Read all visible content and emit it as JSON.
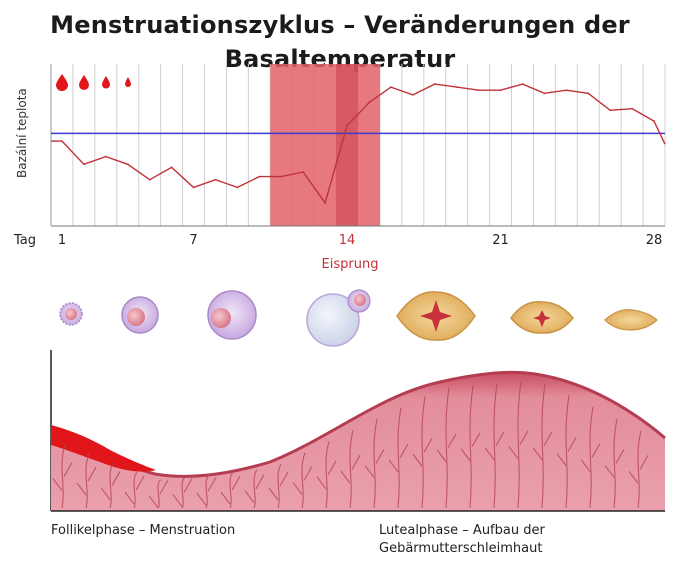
{
  "title_line1": "Menstruationszyklus – Veränderungen der",
  "title_line2": "Basaltemperatur",
  "y_axis_label": "Bazální teplota",
  "x_axis_prefix": "Tag",
  "x_ticks": [
    "1",
    "7",
    "14",
    "21",
    "28"
  ],
  "ovulation_label": "Eisprung",
  "bottom_left_label": "Follikelphase – Menstruation",
  "bottom_right_label_line1": "Lutealphase – Aufbau der",
  "bottom_right_label_line2": "Gebärmutterschleimhaut",
  "colors": {
    "temperature_line": "#c0323a",
    "baseline": "#3b3bd0",
    "ovulation_band": "#e4606a",
    "ovulation_day_label": "#c0323a",
    "blood": "#e0161b",
    "endometrium": "#d96b7c"
  },
  "chart_data": {
    "type": "line",
    "x": [
      1,
      2,
      3,
      4,
      5,
      6,
      7,
      8,
      9,
      10,
      11,
      12,
      13,
      14,
      15,
      16,
      17,
      18,
      19,
      20,
      21,
      22,
      23,
      24,
      25,
      26,
      27,
      28
    ],
    "series": [
      {
        "values": [
          36.35,
          36.2,
          36.25,
          36.2,
          36.1,
          36.18,
          36.05,
          36.1,
          36.05,
          36.12,
          36.12,
          36.15,
          35.95,
          36.45,
          36.6,
          36.7,
          36.65,
          36.72,
          36.7,
          36.68,
          36.68,
          36.72,
          36.66,
          36.68,
          36.66,
          36.55,
          36.56,
          36.48
        ]
      }
    ],
    "baseline": 36.4,
    "ovulation_band_days": [
      11,
      15
    ],
    "ovulation_day": 14,
    "menstruation_drops": 4
  }
}
